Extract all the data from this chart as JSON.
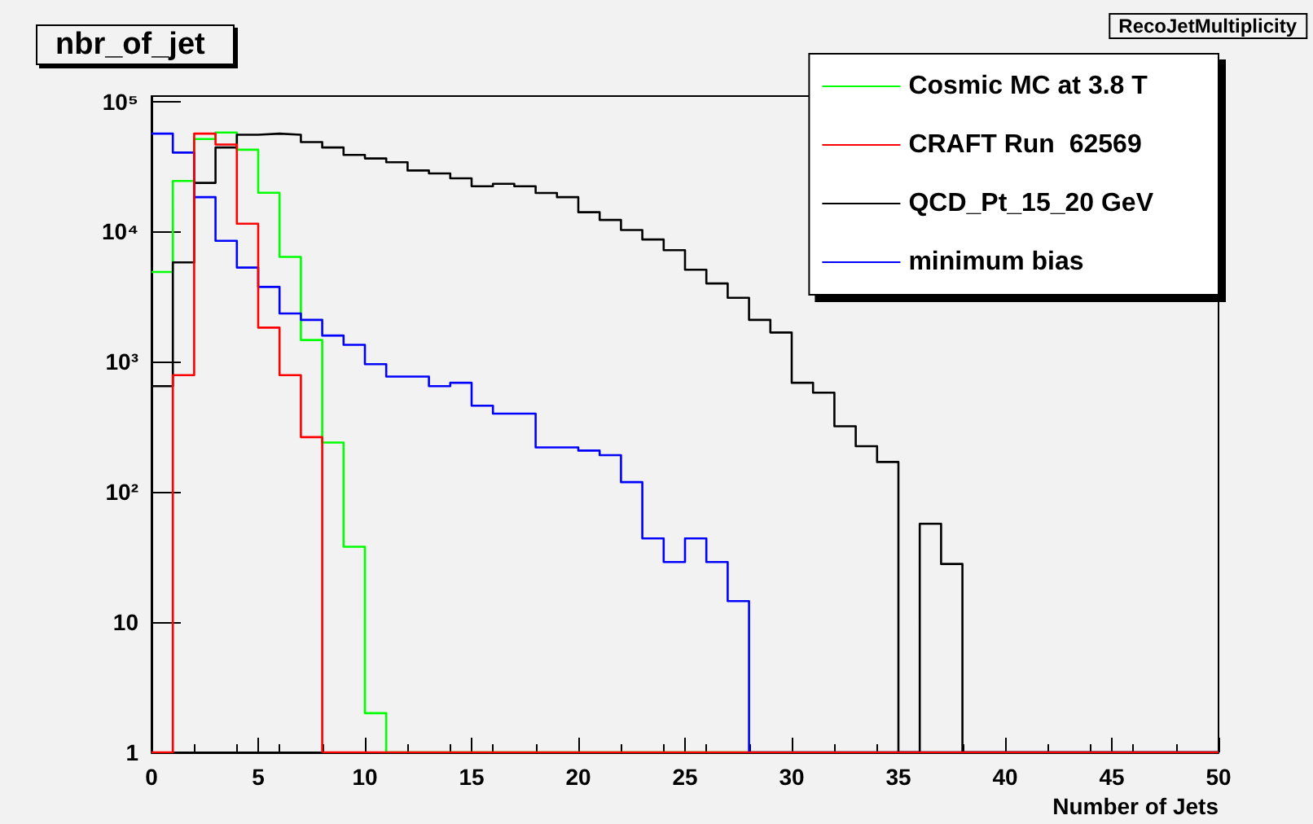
{
  "chart_data": {
    "type": "histogram",
    "title": "nbr_of_jet",
    "xlabel": "Number of Jets",
    "annotations": [
      "RecoJetMultiplicity"
    ],
    "bins": [
      0,
      1,
      2,
      3,
      4,
      5,
      6,
      7,
      8,
      9,
      10,
      11,
      12,
      13,
      14,
      15,
      16,
      17,
      18,
      19,
      20,
      21,
      22,
      23,
      24,
      25,
      26,
      27,
      28,
      29,
      30,
      31,
      32,
      33,
      34,
      35,
      36,
      37,
      38,
      39,
      40,
      41,
      42,
      43,
      44,
      45,
      46,
      47,
      48,
      49,
      50
    ],
    "series": [
      {
        "name": "Cosmic MC at 3.8 T",
        "color": "#00ff00",
        "values": [
          4900,
          24500,
          51500,
          57800,
          42600,
          19900,
          6400,
          1470,
          240,
          38,
          2,
          null,
          null,
          null,
          null,
          null,
          null,
          null,
          null,
          null,
          null,
          null,
          null,
          null,
          null,
          null,
          null,
          null,
          null,
          null,
          null,
          null,
          null,
          null,
          null,
          null,
          null,
          null,
          null,
          null,
          null,
          null,
          null,
          null,
          null,
          null,
          null,
          null,
          null,
          null
        ]
      },
      {
        "name": "CRAFT Run  62569",
        "color": "#ff0000",
        "values": [
          null,
          790,
          56600,
          46700,
          11500,
          1830,
          790,
          264,
          null,
          null,
          null,
          null,
          null,
          null,
          null,
          null,
          null,
          null,
          null,
          null,
          null,
          null,
          null,
          null,
          null,
          null,
          null,
          null,
          null,
          null,
          null,
          null,
          null,
          null,
          null,
          null,
          null,
          null,
          null,
          null,
          null,
          null,
          null,
          null,
          null,
          null,
          null,
          null,
          null,
          null
        ]
      },
      {
        "name": "QCD_Pt_15_20 GeV",
        "color": "#000000",
        "values": [
          650,
          5800,
          23700,
          44300,
          55500,
          56600,
          55500,
          48700,
          44300,
          38900,
          36500,
          34100,
          29500,
          28000,
          25700,
          22300,
          23300,
          22300,
          19800,
          18400,
          14100,
          12300,
          10300,
          8700,
          7200,
          5100,
          4000,
          3100,
          2100,
          1680,
          690,
          580,
          320,
          225,
          170,
          null,
          57,
          28,
          null,
          null,
          null,
          null,
          null,
          null,
          null,
          null,
          null,
          null,
          null,
          null
        ]
      },
      {
        "name": "minimum bias",
        "color": "#0000ff",
        "values": [
          56600,
          40500,
          18400,
          8500,
          5300,
          3760,
          2350,
          2100,
          1590,
          1350,
          960,
          770,
          770,
          650,
          690,
          460,
          400,
          400,
          220,
          220,
          208,
          192,
          119,
          44,
          29,
          44,
          29,
          14.5,
          null,
          null,
          null,
          null,
          null,
          null,
          null,
          null,
          null,
          null,
          null,
          null,
          null,
          null,
          null,
          null,
          null,
          null,
          null,
          null,
          null,
          null
        ]
      }
    ],
    "xlim": [
      0,
      50
    ],
    "xticks": [
      0,
      5,
      10,
      15,
      20,
      25,
      30,
      35,
      40,
      45,
      50
    ],
    "ylim": [
      1,
      110000
    ],
    "yticks": [
      1,
      10,
      {
        "value": 100,
        "label": "10²"
      },
      {
        "value": 1000,
        "label": "10³"
      },
      {
        "value": 10000,
        "label": "10⁴"
      },
      {
        "value": 100000,
        "label": "10⁵"
      }
    ],
    "log": "y",
    "legend": "top right"
  }
}
